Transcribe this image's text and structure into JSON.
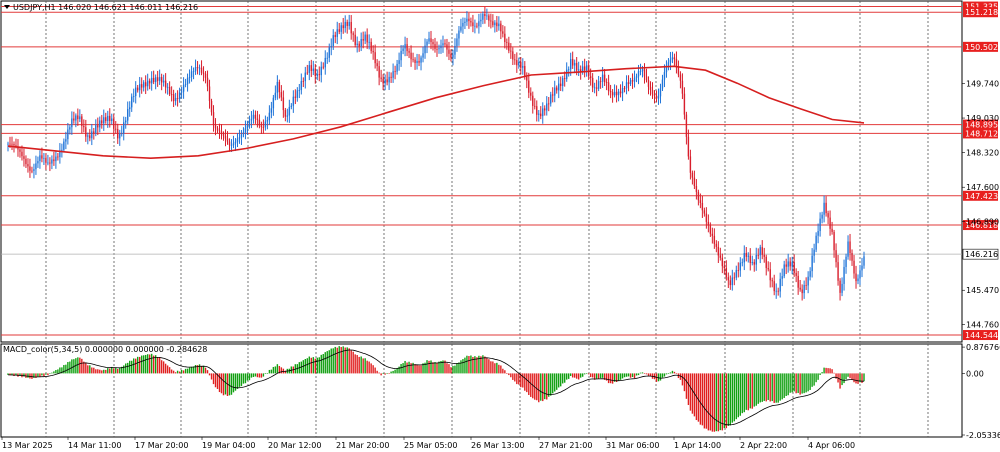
{
  "window": {
    "header_text": "USDJPY,H1  146.020 146.621 146.011 146.216"
  },
  "macd_label": "MACD_color(5,34,5) 0.000000 0.000000 -0.284628",
  "colors": {
    "bull": "#1e73d8",
    "bear": "#d81e2c",
    "ma": "#d61f1f",
    "level": "#e23a3a",
    "tag_bg": "#e8201f",
    "hist_up": "#12a012",
    "hist_down": "#e02020",
    "grid": "#555555"
  },
  "chart_data": [
    {
      "type": "candlestick",
      "symbol": "USDJPY",
      "timeframe": "H1",
      "ohlc_last": {
        "open": 146.02,
        "high": 146.621,
        "low": 146.011,
        "close": 146.216
      },
      "ylim": [
        144.4,
        151.45
      ],
      "y_ticks": [
        {
          "value": 151.335,
          "label": "151.335"
        },
        {
          "value": 149.74,
          "label": "149.740"
        },
        {
          "value": 149.03,
          "label": "149.030"
        },
        {
          "value": 148.32,
          "label": "148.320"
        },
        {
          "value": 147.6,
          "label": "147.600"
        },
        {
          "value": 146.89,
          "label": "146.890"
        },
        {
          "value": 145.47,
          "label": "145.470"
        },
        {
          "value": 144.76,
          "label": "144.760"
        }
      ],
      "x_ticks": [
        "13 Mar 2025",
        "14 Mar 11:00",
        "17 Mar 20:00",
        "19 Mar 04:00",
        "20 Mar 12:00",
        "21 Mar 20:00",
        "25 Mar 05:00",
        "26 Mar 13:00",
        "27 Mar 21:00",
        "31 Mar 06:00",
        "1 Apr 14:00",
        "2 Apr 22:00",
        "4 Apr 06:00"
      ],
      "price_levels": [
        {
          "value": 151.335,
          "label": "151.335"
        },
        {
          "value": 151.218,
          "label": "151.218"
        },
        {
          "value": 150.502,
          "label": "150.502"
        },
        {
          "value": 148.895,
          "label": "148.895"
        },
        {
          "value": 148.712,
          "label": "148.712"
        },
        {
          "value": 147.423,
          "label": "147.423"
        },
        {
          "value": 146.818,
          "label": "146.818"
        },
        {
          "value": 144.544,
          "label": "144.544"
        }
      ],
      "current_price": {
        "value": 146.216,
        "label": "146.216"
      },
      "close_path": [
        [
          0,
          148.5
        ],
        [
          1,
          148.35
        ],
        [
          2,
          148.2
        ],
        [
          3,
          148.0
        ],
        [
          4,
          148.2
        ],
        [
          5,
          148.0
        ],
        [
          6,
          148.25
        ],
        [
          7,
          148.55
        ],
        [
          8,
          148.9
        ],
        [
          9,
          149.0
        ],
        [
          10,
          148.7
        ],
        [
          11,
          148.85
        ],
        [
          12,
          148.9
        ],
        [
          13,
          149.0
        ],
        [
          14,
          148.7
        ],
        [
          15,
          149.1
        ],
        [
          16,
          149.5
        ],
        [
          17,
          149.75
        ],
        [
          18,
          149.9
        ],
        [
          19,
          149.8
        ],
        [
          20,
          149.6
        ],
        [
          21,
          149.45
        ],
        [
          22,
          149.7
        ],
        [
          23,
          149.85
        ],
        [
          24,
          150.05
        ],
        [
          25,
          149.95
        ],
        [
          26,
          148.85
        ],
        [
          27,
          148.6
        ],
        [
          28,
          148.45
        ],
        [
          29,
          148.7
        ],
        [
          30,
          148.8
        ],
        [
          31,
          149.0
        ],
        [
          32,
          148.85
        ],
        [
          33,
          149.2
        ],
        [
          34,
          149.7
        ],
        [
          35,
          148.95
        ],
        [
          36,
          149.5
        ],
        [
          37,
          149.8
        ],
        [
          38,
          150.0
        ],
        [
          39,
          149.85
        ],
        [
          40,
          150.3
        ],
        [
          41,
          150.7
        ],
        [
          42,
          150.8
        ],
        [
          43,
          151.0
        ],
        [
          44,
          150.6
        ],
        [
          45,
          150.7
        ],
        [
          46,
          150.3
        ],
        [
          47,
          149.85
        ],
        [
          48,
          149.9
        ],
        [
          49,
          150.0
        ],
        [
          50,
          150.5
        ],
        [
          51,
          150.3
        ],
        [
          52,
          150.25
        ],
        [
          53,
          150.6
        ],
        [
          54,
          150.4
        ],
        [
          55,
          150.7
        ],
        [
          56,
          150.25
        ],
        [
          57,
          150.8
        ],
        [
          58,
          151.1
        ],
        [
          59,
          151.0
        ],
        [
          60,
          151.15
        ],
        [
          61,
          150.9
        ],
        [
          62,
          151.0
        ],
        [
          63,
          150.6
        ],
        [
          64,
          150.1
        ],
        [
          65,
          150.0
        ],
        [
          66,
          149.5
        ],
        [
          67,
          149.1
        ],
        [
          68,
          149.2
        ],
        [
          69,
          149.6
        ],
        [
          70,
          149.9
        ],
        [
          71,
          150.2
        ],
        [
          72,
          149.9
        ],
        [
          73,
          150.1
        ],
        [
          74,
          149.7
        ],
        [
          75,
          149.85
        ],
        [
          76,
          149.45
        ],
        [
          77,
          149.6
        ],
        [
          78,
          149.8
        ],
        [
          79,
          149.75
        ],
        [
          80,
          150.0
        ],
        [
          81,
          149.7
        ],
        [
          82,
          149.45
        ],
        [
          83,
          150.0
        ],
        [
          84,
          150.3
        ],
        [
          85,
          149.8
        ],
        [
          86,
          147.95
        ],
        [
          87,
          147.3
        ],
        [
          88,
          147.0
        ],
        [
          89,
          146.6
        ],
        [
          90,
          146.0
        ],
        [
          91,
          145.5
        ],
        [
          92,
          145.95
        ],
        [
          93,
          146.3
        ],
        [
          94,
          145.9
        ],
        [
          95,
          146.3
        ],
        [
          96,
          145.9
        ],
        [
          97,
          145.4
        ],
        [
          98,
          145.9
        ],
        [
          99,
          146.0
        ],
        [
          100,
          145.5
        ],
        [
          101,
          145.7
        ],
        [
          102,
          146.5
        ],
        [
          103,
          147.3
        ],
        [
          104,
          146.7
        ],
        [
          105,
          145.3
        ],
        [
          106,
          146.4
        ],
        [
          107,
          145.7
        ],
        [
          108,
          146.2
        ]
      ],
      "moving_average": [
        [
          0,
          148.45
        ],
        [
          6,
          148.35
        ],
        [
          12,
          148.25
        ],
        [
          18,
          148.2
        ],
        [
          24,
          148.25
        ],
        [
          30,
          148.4
        ],
        [
          36,
          148.6
        ],
        [
          42,
          148.85
        ],
        [
          48,
          149.15
        ],
        [
          54,
          149.45
        ],
        [
          60,
          149.7
        ],
        [
          66,
          149.92
        ],
        [
          72,
          149.98
        ],
        [
          78,
          150.05
        ],
        [
          84,
          150.1
        ],
        [
          88,
          150.02
        ],
        [
          92,
          149.75
        ],
        [
          96,
          149.45
        ],
        [
          100,
          149.22
        ],
        [
          104,
          149.0
        ],
        [
          108,
          148.93
        ]
      ]
    },
    {
      "type": "histogram",
      "name": "MACD_color(5,34,5)",
      "ylim": [
        -2.12,
        0.98
      ],
      "y_ticks": [
        {
          "value": 0.876766,
          "label": "0.876766"
        },
        {
          "value": 0.0,
          "label": "0.00"
        },
        {
          "value": -2.053364,
          "label": "-2.053364"
        }
      ],
      "histogram": [
        [
          0,
          -0.05
        ],
        [
          1,
          -0.08
        ],
        [
          2,
          -0.12
        ],
        [
          3,
          -0.18
        ],
        [
          4,
          -0.1
        ],
        [
          5,
          -0.05
        ],
        [
          6,
          0.1
        ],
        [
          7,
          0.25
        ],
        [
          8,
          0.45
        ],
        [
          9,
          0.55
        ],
        [
          10,
          0.3
        ],
        [
          11,
          0.15
        ],
        [
          12,
          0.1
        ],
        [
          13,
          0.2
        ],
        [
          14,
          0.15
        ],
        [
          15,
          0.35
        ],
        [
          16,
          0.5
        ],
        [
          17,
          0.6
        ],
        [
          18,
          0.65
        ],
        [
          19,
          0.55
        ],
        [
          20,
          0.3
        ],
        [
          21,
          0.05
        ],
        [
          22,
          0.1
        ],
        [
          23,
          0.2
        ],
        [
          24,
          0.3
        ],
        [
          25,
          0.2
        ],
        [
          26,
          -0.4
        ],
        [
          27,
          -0.7
        ],
        [
          28,
          -0.75
        ],
        [
          29,
          -0.5
        ],
        [
          30,
          -0.3
        ],
        [
          31,
          -0.1
        ],
        [
          32,
          -0.15
        ],
        [
          33,
          0.1
        ],
        [
          34,
          0.3
        ],
        [
          35,
          0.1
        ],
        [
          36,
          0.25
        ],
        [
          37,
          0.4
        ],
        [
          38,
          0.55
        ],
        [
          39,
          0.5
        ],
        [
          40,
          0.7
        ],
        [
          41,
          0.85
        ],
        [
          42,
          0.9
        ],
        [
          43,
          0.85
        ],
        [
          44,
          0.6
        ],
        [
          45,
          0.5
        ],
        [
          46,
          0.3
        ],
        [
          47,
          -0.05
        ],
        [
          48,
          0.0
        ],
        [
          49,
          0.15
        ],
        [
          50,
          0.4
        ],
        [
          51,
          0.35
        ],
        [
          52,
          0.25
        ],
        [
          53,
          0.45
        ],
        [
          54,
          0.35
        ],
        [
          55,
          0.45
        ],
        [
          56,
          0.2
        ],
        [
          57,
          0.4
        ],
        [
          58,
          0.6
        ],
        [
          59,
          0.55
        ],
        [
          60,
          0.6
        ],
        [
          61,
          0.4
        ],
        [
          62,
          0.3
        ],
        [
          63,
          0.0
        ],
        [
          64,
          -0.3
        ],
        [
          65,
          -0.5
        ],
        [
          66,
          -0.8
        ],
        [
          67,
          -0.95
        ],
        [
          68,
          -0.85
        ],
        [
          69,
          -0.6
        ],
        [
          70,
          -0.35
        ],
        [
          71,
          -0.1
        ],
        [
          72,
          -0.2
        ],
        [
          73,
          0.0
        ],
        [
          74,
          -0.2
        ],
        [
          75,
          -0.15
        ],
        [
          76,
          -0.35
        ],
        [
          77,
          -0.25
        ],
        [
          78,
          -0.1
        ],
        [
          79,
          -0.15
        ],
        [
          80,
          0.05
        ],
        [
          81,
          -0.1
        ],
        [
          82,
          -0.3
        ],
        [
          83,
          -0.05
        ],
        [
          84,
          0.1
        ],
        [
          85,
          -0.3
        ],
        [
          86,
          -1.2
        ],
        [
          87,
          -1.6
        ],
        [
          88,
          -1.85
        ],
        [
          89,
          -1.95
        ],
        [
          90,
          -1.9
        ],
        [
          91,
          -1.75
        ],
        [
          92,
          -1.5
        ],
        [
          93,
          -1.25
        ],
        [
          94,
          -1.15
        ],
        [
          95,
          -0.95
        ],
        [
          96,
          -0.9
        ],
        [
          97,
          -1.0
        ],
        [
          98,
          -0.8
        ],
        [
          99,
          -0.6
        ],
        [
          100,
          -0.7
        ],
        [
          101,
          -0.6
        ],
        [
          102,
          -0.3
        ],
        [
          103,
          0.2
        ],
        [
          104,
          0.15
        ],
        [
          105,
          -0.5
        ],
        [
          106,
          -0.1
        ],
        [
          107,
          -0.35
        ],
        [
          108,
          -0.28
        ]
      ]
    }
  ]
}
